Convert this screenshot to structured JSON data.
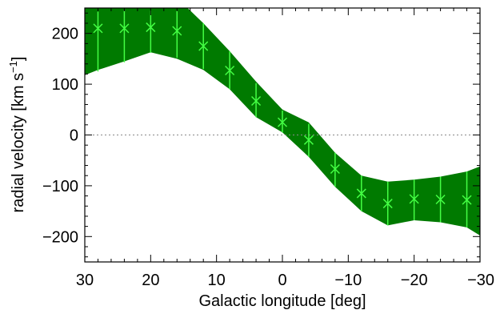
{
  "chart_data": {
    "type": "line",
    "xlabel": "Galactic longitude [deg]",
    "ylabel_main": "radial velocity [km s",
    "ylabel_sup": "−1",
    "ylabel_close": "]",
    "xlim": [
      30,
      -30
    ],
    "ylim": [
      -250,
      250
    ],
    "x_ticks": [
      30,
      20,
      10,
      0,
      -10,
      -20,
      -30
    ],
    "x_tick_labels": [
      "30",
      "20",
      "10",
      "0",
      "−10",
      "−20",
      "−30"
    ],
    "y_ticks": [
      200,
      100,
      0,
      -100,
      -200
    ],
    "y_tick_labels": [
      "200",
      "100",
      "0",
      "−100",
      "−200"
    ],
    "zero_line": true,
    "colors": {
      "band": "#007a00",
      "marker": "#44ff44",
      "axis": "#000000",
      "zero_line": "#888888"
    },
    "band": {
      "x": [
        30,
        28,
        24,
        20,
        16,
        12,
        8,
        4,
        0,
        -4,
        -8,
        -12,
        -16,
        -20,
        -24,
        -28,
        -30
      ],
      "upper": [
        285,
        280,
        270,
        285,
        270,
        220,
        165,
        105,
        50,
        25,
        -35,
        -80,
        -92,
        -88,
        -82,
        -72,
        -62
      ],
      "lower": [
        118,
        128,
        145,
        163,
        150,
        128,
        90,
        35,
        5,
        -43,
        -102,
        -150,
        -178,
        -168,
        -172,
        -182,
        -198
      ]
    },
    "points": {
      "x": [
        28,
        24,
        20,
        16,
        12,
        8,
        4,
        0,
        -4,
        -8,
        -12,
        -16,
        -20,
        -24,
        -28
      ],
      "y": [
        210,
        210,
        212,
        205,
        175,
        127,
        67,
        25,
        -10,
        -67,
        -115,
        -135,
        -126,
        -127,
        -128
      ],
      "y_high": [
        243,
        245,
        245,
        245,
        220,
        165,
        102,
        48,
        22,
        -35,
        -80,
        -92,
        -88,
        -82,
        -72
      ],
      "y_low": [
        125,
        143,
        162,
        152,
        130,
        90,
        35,
        5,
        -43,
        -102,
        -150,
        -178,
        -168,
        -172,
        -182
      ]
    }
  }
}
